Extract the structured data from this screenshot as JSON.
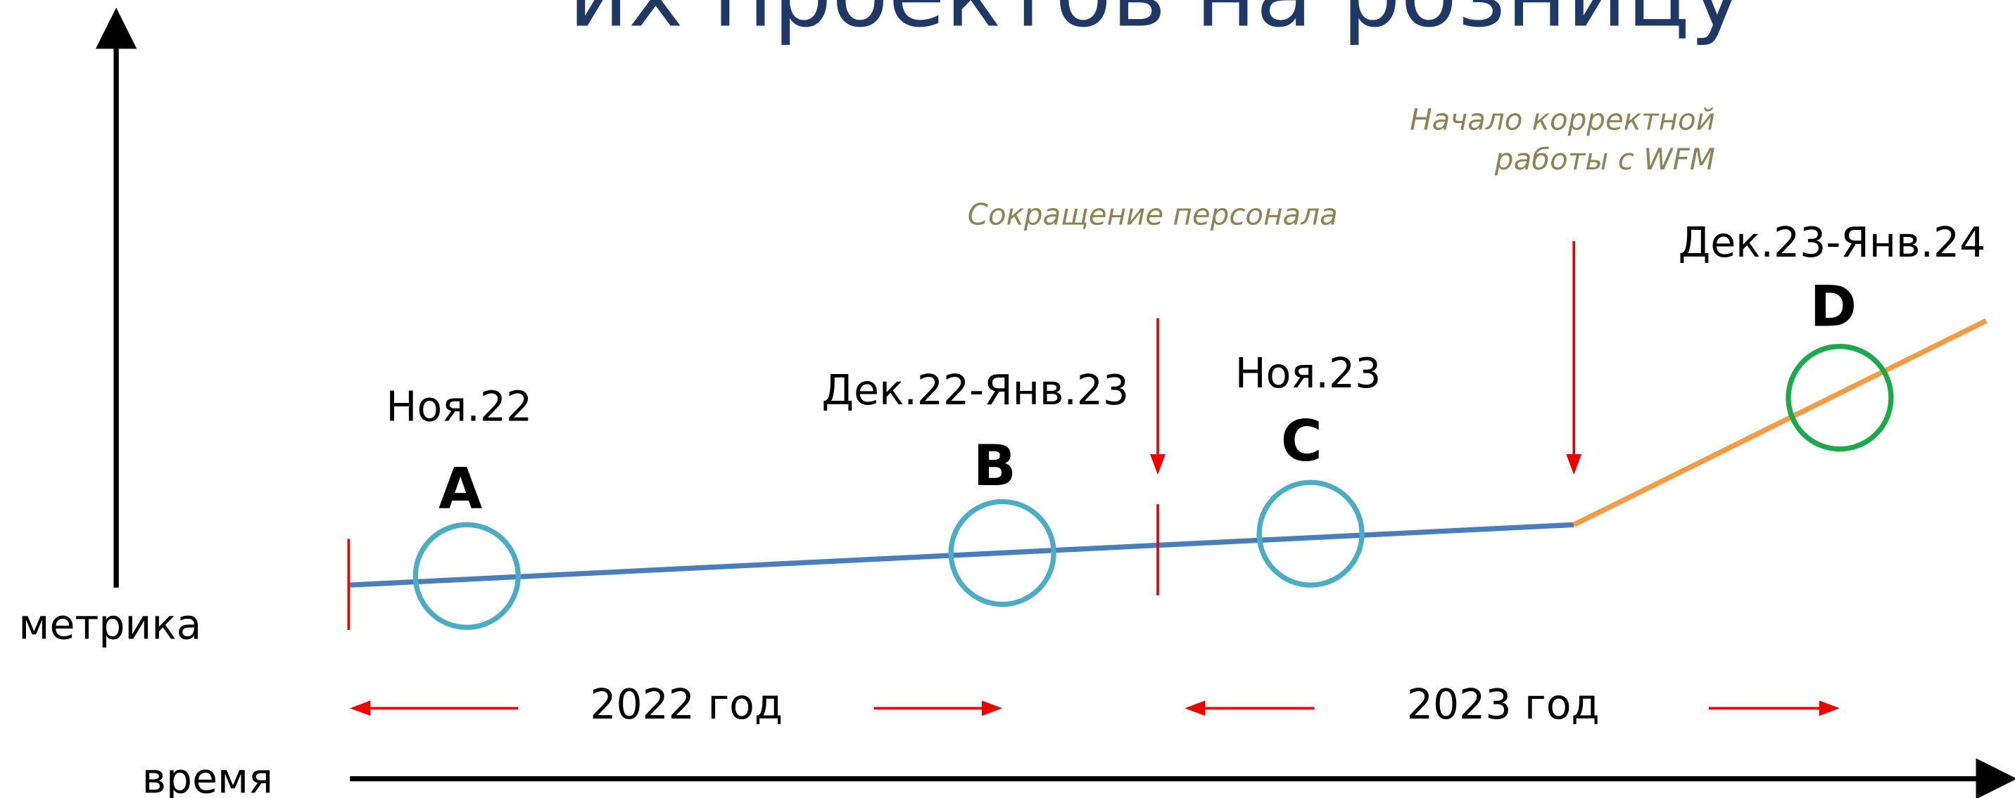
{
  "title": "их проектов на розницу",
  "axes": {
    "y_label": "метрика",
    "x_label": "время"
  },
  "points": [
    {
      "letter": "A",
      "date": "Ноя.22"
    },
    {
      "letter": "B",
      "date": "Дек.22-Янв.23"
    },
    {
      "letter": "C",
      "date": "Ноя.23"
    },
    {
      "letter": "D",
      "date": "Дек.23-Янв.24"
    }
  ],
  "annotations": [
    "Сокращение персонала",
    "Начало корректной",
    "работы с WFM"
  ],
  "periods": [
    "2022 год",
    "2023 год"
  ]
}
